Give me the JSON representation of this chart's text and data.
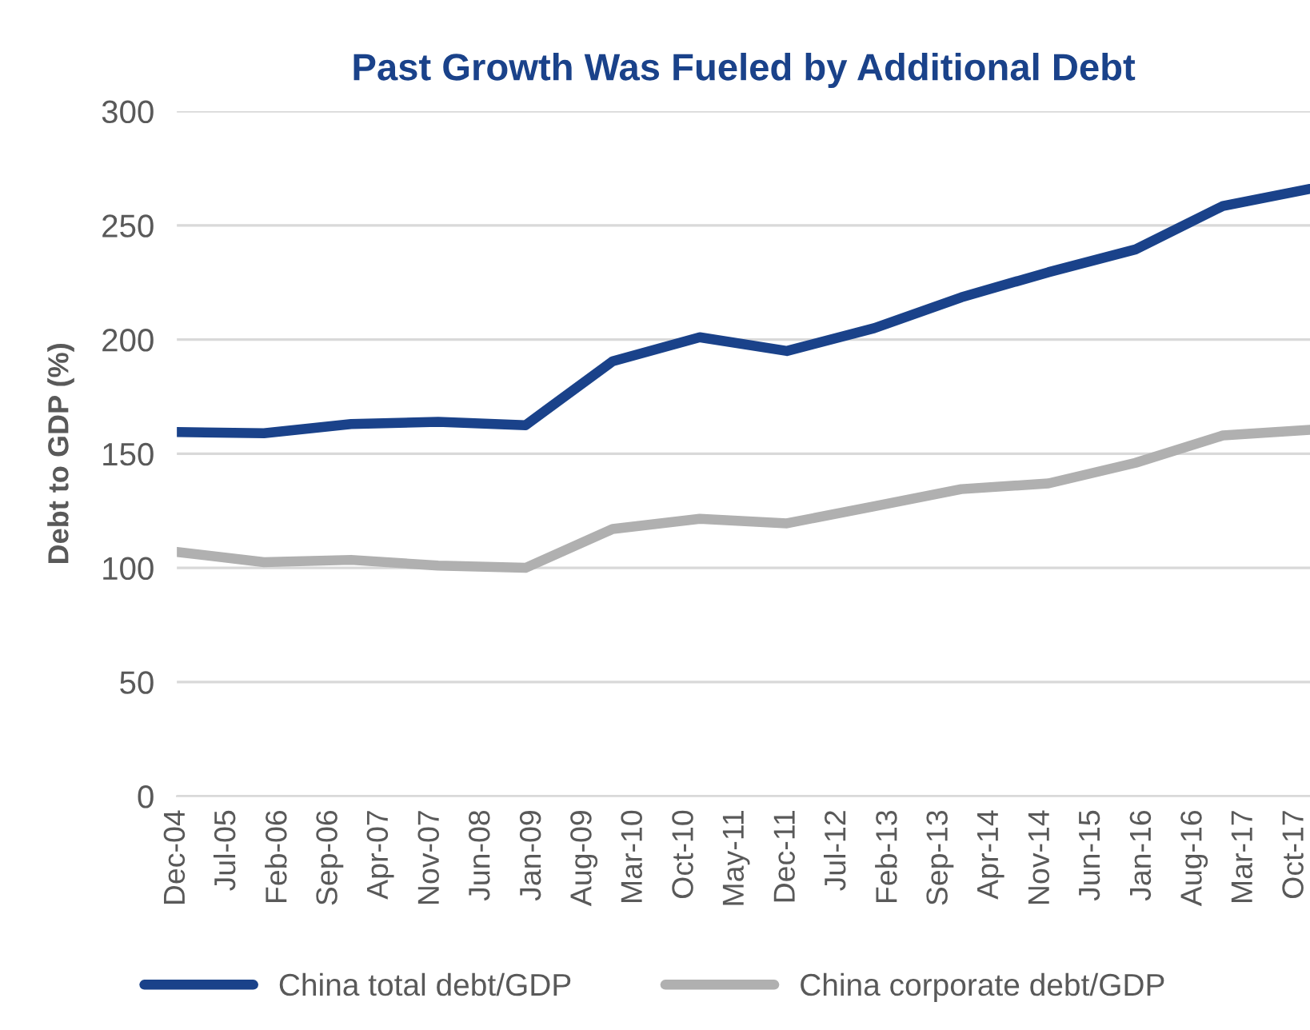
{
  "chart_data": {
    "type": "line",
    "title": "Past Growth Was Fueled by Additional Debt",
    "ylabel": "Debt to GDP (%)",
    "x": [
      "2004-12",
      "2005-12",
      "2006-12",
      "2007-12",
      "2008-12",
      "2009-12",
      "2010-12",
      "2011-12",
      "2012-12",
      "2013-12",
      "2014-12",
      "2015-12",
      "2016-12",
      "2017-12"
    ],
    "series": [
      {
        "name": "China total debt/GDP",
        "color": "#1a428a",
        "values": [
          159.5,
          159,
          163,
          164,
          162.5,
          190.5,
          201,
          195,
          205,
          218.5,
          229.5,
          239.5,
          258.5,
          266
        ]
      },
      {
        "name": "China corporate debt/GDP",
        "color": "#b0b0b0",
        "values": [
          107,
          102.5,
          103.5,
          101,
          100,
          117,
          121.5,
          119.5,
          127,
          134.5,
          137,
          146,
          158,
          160.5
        ]
      }
    ],
    "xlim": [
      "2004-12",
      "2017-12"
    ],
    "xticks": [
      {
        "value": "2004-12",
        "label": "Dec-04"
      },
      {
        "value": "2005-07",
        "label": "Jul-05"
      },
      {
        "value": "2006-02",
        "label": "Feb-06"
      },
      {
        "value": "2006-09",
        "label": "Sep-06"
      },
      {
        "value": "2007-04",
        "label": "Apr-07"
      },
      {
        "value": "2007-11",
        "label": "Nov-07"
      },
      {
        "value": "2008-06",
        "label": "Jun-08"
      },
      {
        "value": "2009-01",
        "label": "Jan-09"
      },
      {
        "value": "2009-08",
        "label": "Aug-09"
      },
      {
        "value": "2010-03",
        "label": "Mar-10"
      },
      {
        "value": "2010-10",
        "label": "Oct-10"
      },
      {
        "value": "2011-05",
        "label": "May-11"
      },
      {
        "value": "2011-12",
        "label": "Dec-11"
      },
      {
        "value": "2012-07",
        "label": "Jul-12"
      },
      {
        "value": "2013-02",
        "label": "Feb-13"
      },
      {
        "value": "2013-09",
        "label": "Sep-13"
      },
      {
        "value": "2014-04",
        "label": "Apr-14"
      },
      {
        "value": "2014-11",
        "label": "Nov-14"
      },
      {
        "value": "2015-06",
        "label": "Jun-15"
      },
      {
        "value": "2016-01",
        "label": "Jan-16"
      },
      {
        "value": "2016-08",
        "label": "Aug-16"
      },
      {
        "value": "2017-03",
        "label": "Mar-17"
      },
      {
        "value": "2017-10",
        "label": "Oct-17"
      }
    ],
    "ylim": [
      0,
      300
    ],
    "yticks": [
      0,
      50,
      100,
      150,
      200,
      250,
      300
    ],
    "grid": "y",
    "legend": "bottom",
    "marker": "none",
    "line_style": "solid"
  }
}
